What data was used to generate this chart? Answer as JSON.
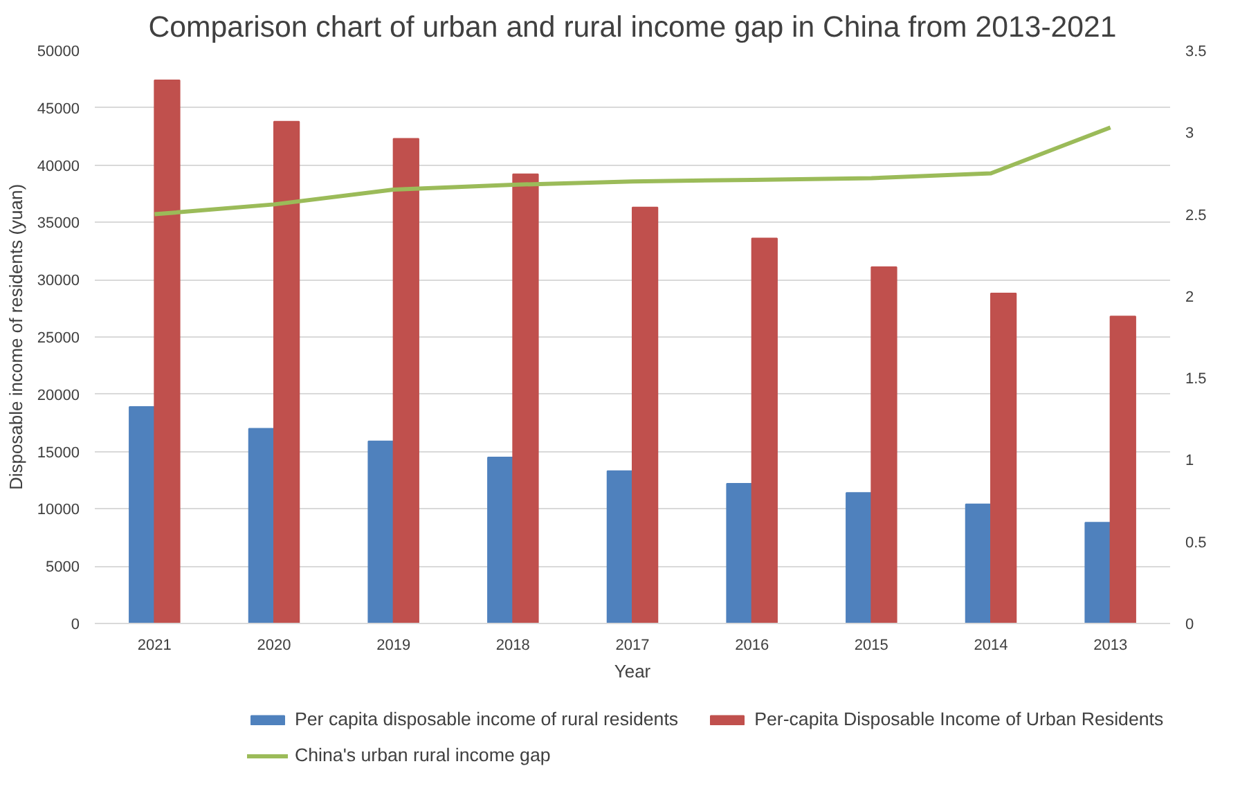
{
  "chart_data": {
    "type": "bar",
    "title": "Comparison chart of urban and rural income gap in China from 2013-2021",
    "xlabel": "Year",
    "ylabel": "Disposable income of residents (yuan)",
    "categories": [
      "2021",
      "2020",
      "2019",
      "2018",
      "2017",
      "2016",
      "2015",
      "2014",
      "2013"
    ],
    "series": [
      {
        "name": "Per capita disposable income of rural residents",
        "color": "#4f81bd",
        "values": [
          18900,
          17000,
          15900,
          14500,
          13300,
          12200,
          11400,
          10400,
          8800
        ]
      },
      {
        "name": "Per-capita Disposable Income of Urban Residents",
        "color": "#c0504d",
        "values": [
          47400,
          43800,
          42300,
          39200,
          36300,
          33600,
          31100,
          28800,
          26800
        ]
      },
      {
        "name": "China's urban rural income gap",
        "type": "line",
        "axis": "y2",
        "color": "#9bbb59",
        "values": [
          2.5,
          2.56,
          2.65,
          2.68,
          2.7,
          2.71,
          2.72,
          2.75,
          3.03
        ]
      }
    ],
    "ylim": [
      0,
      50000
    ],
    "yticks": [
      0,
      5000,
      10000,
      15000,
      20000,
      25000,
      30000,
      35000,
      40000,
      45000,
      50000
    ],
    "y2lim": [
      0,
      3.5
    ],
    "y2ticks": [
      0,
      0.5,
      1,
      1.5,
      2,
      2.5,
      3,
      3.5
    ],
    "grid": "y",
    "legend": "bottom",
    "marker": "none",
    "line_style": "solid"
  }
}
